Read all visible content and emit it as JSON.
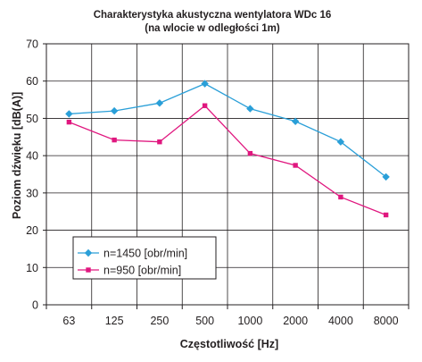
{
  "chart_data": {
    "type": "line",
    "title": "Charakterystyka akustyczna wentylatora WDc 16",
    "subtitle": "(na wlocie w odległości 1m)",
    "xlabel": "Częstotliwość [Hz]",
    "ylabel": "Poziom dźwięku [dB(A)]",
    "categories": [
      "63",
      "125",
      "250",
      "500",
      "1000",
      "2000",
      "4000",
      "8000"
    ],
    "ylim": [
      0,
      70
    ],
    "yticks": [
      "0",
      "10",
      "20",
      "30",
      "40",
      "50",
      "60",
      "70"
    ],
    "grid": true,
    "legend_position": "bottom-left",
    "series": [
      {
        "name": "n=1450 [obr/min]",
        "color": "#2a9fd8",
        "marker": "diamond",
        "values": [
          51.2,
          52.0,
          54.1,
          59.3,
          52.6,
          49.2,
          43.7,
          34.3
        ]
      },
      {
        "name": "n=950 [obr/min]",
        "color": "#e0177f",
        "marker": "square",
        "values": [
          49.0,
          44.2,
          43.7,
          53.4,
          40.6,
          37.4,
          28.9,
          24.1
        ]
      }
    ]
  }
}
